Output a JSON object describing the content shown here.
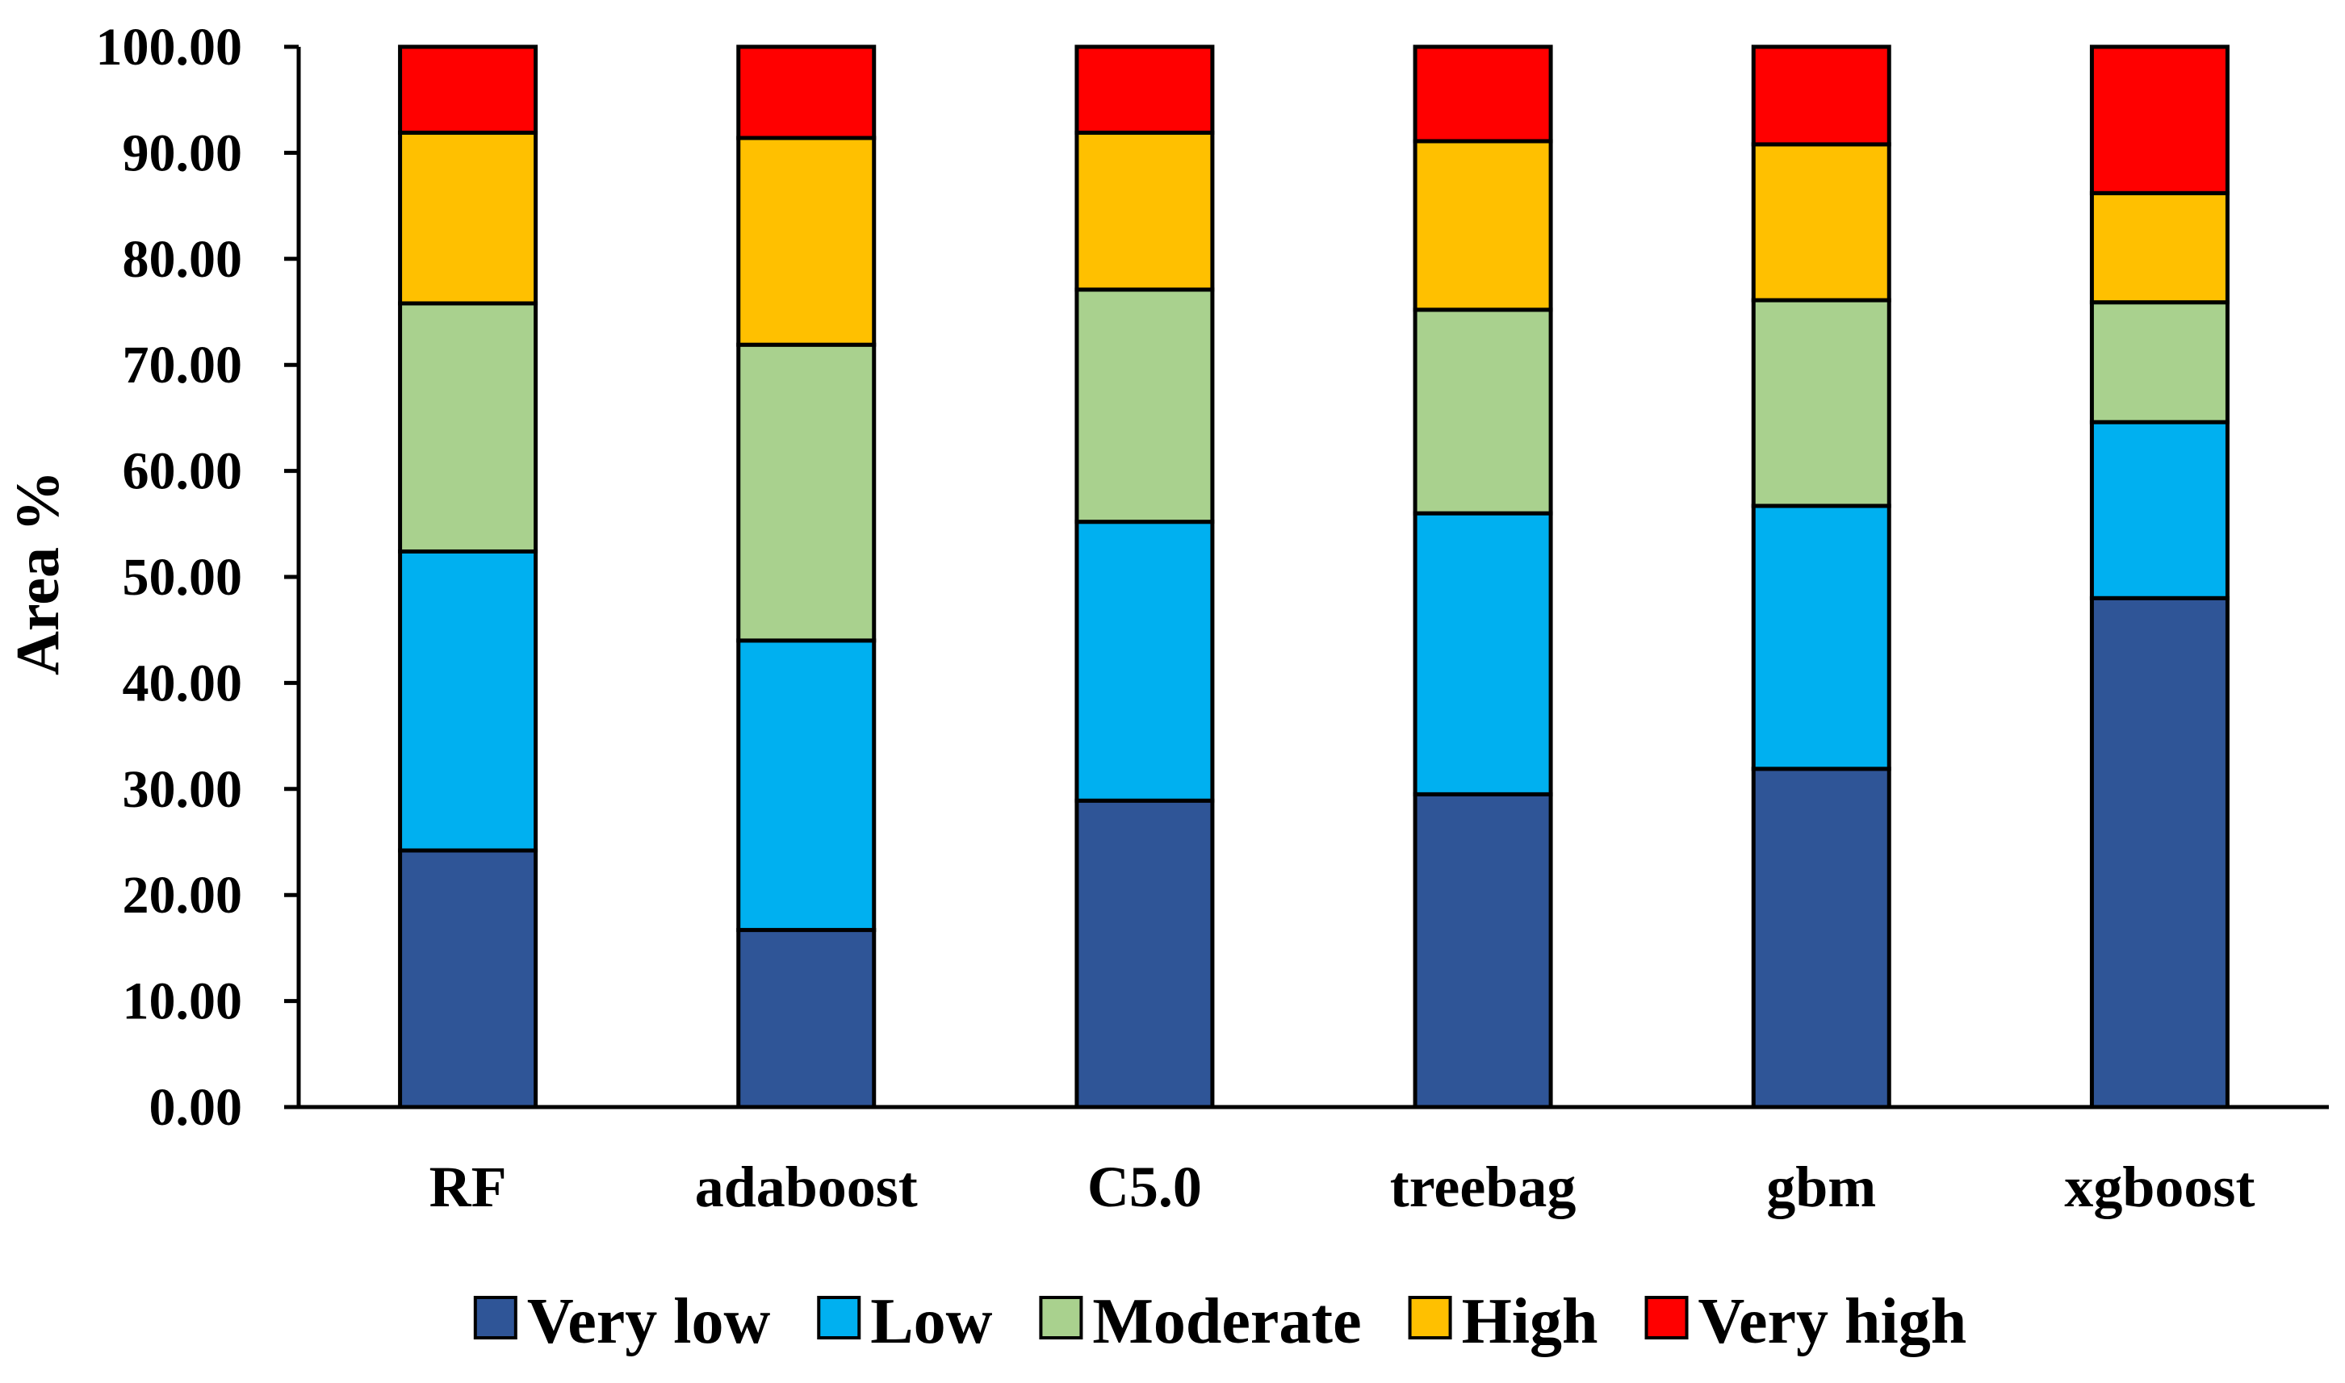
{
  "chart_data": {
    "type": "bar",
    "stacked": true,
    "title": "",
    "xlabel": "",
    "ylabel": "Area %",
    "ylim": [
      0,
      100
    ],
    "yticks": [
      "0.00",
      "10.00",
      "20.00",
      "30.00",
      "40.00",
      "50.00",
      "60.00",
      "70.00",
      "80.00",
      "90.00",
      "100.00"
    ],
    "grid": false,
    "legend_position": "bottom",
    "categories": [
      "RF",
      "adaboost",
      "C5.0",
      "treebag",
      "gbm",
      "xgboost"
    ],
    "series": [
      {
        "name": "Very low",
        "color": "#2F5597",
        "values": [
          24.2,
          16.7,
          28.9,
          29.5,
          31.9,
          48.0
        ]
      },
      {
        "name": "Low",
        "color": "#00B0F0",
        "values": [
          28.2,
          27.3,
          26.3,
          26.5,
          24.8,
          16.6
        ]
      },
      {
        "name": "Moderate",
        "color": "#A9D18E",
        "values": [
          23.4,
          27.9,
          21.9,
          19.2,
          19.4,
          11.3
        ]
      },
      {
        "name": "High",
        "color": "#FFC000",
        "values": [
          16.1,
          19.5,
          14.8,
          15.9,
          14.7,
          10.3
        ]
      },
      {
        "name": "Very high",
        "color": "#FF0000",
        "values": [
          8.1,
          8.6,
          8.1,
          8.9,
          9.2,
          13.8
        ]
      }
    ]
  }
}
